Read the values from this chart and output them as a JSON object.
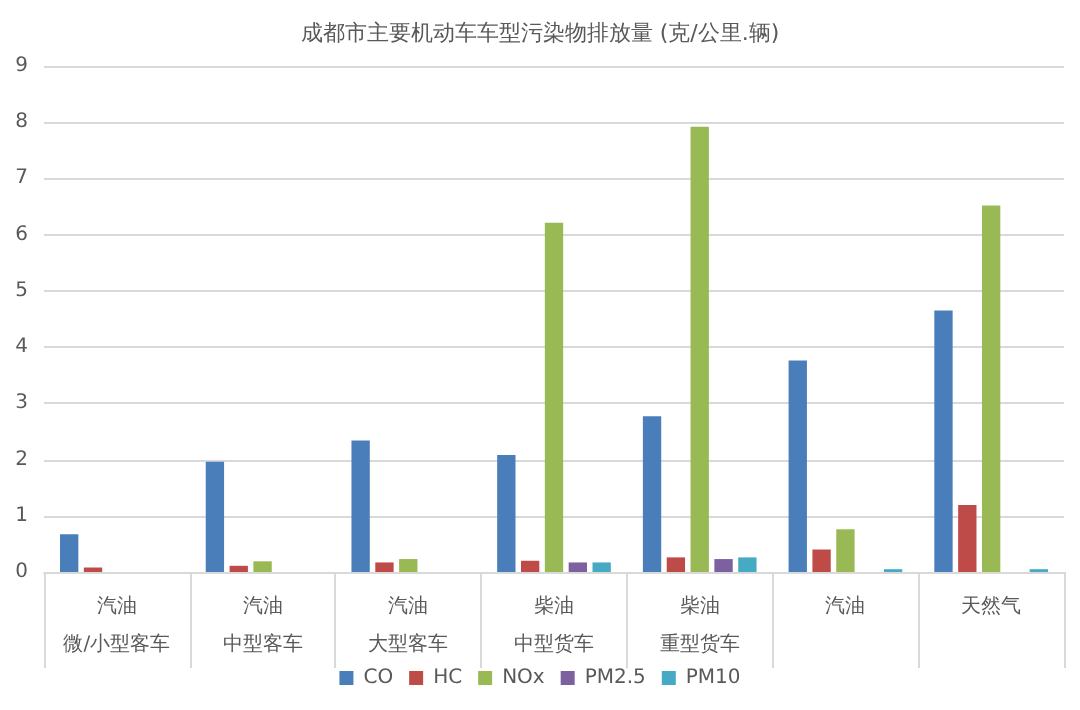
{
  "chart_data": {
    "type": "bar",
    "title": "成都市主要机动车车型污染物排放量 (克/公里.辆)",
    "categories": [
      "汽油微/小型客车",
      "汽油中型客车",
      "汽油大型客车",
      "柴油中型货车",
      "柴油重型货车",
      "汽油",
      "天然气"
    ],
    "series": [
      {
        "name": "CO",
        "color": "#4a7ebb",
        "values": [
          0.67,
          1.96,
          2.34,
          2.08,
          2.77,
          3.76,
          4.65
        ]
      },
      {
        "name": "HC",
        "color": "#be4b48",
        "values": [
          0.08,
          0.11,
          0.17,
          0.2,
          0.26,
          0.4,
          1.19
        ]
      },
      {
        "name": "NOx",
        "color": "#98b954",
        "values": [
          null,
          0.19,
          0.23,
          6.21,
          7.92,
          0.76,
          6.52
        ]
      },
      {
        "name": "PM2.5",
        "color": "#7d60a0",
        "values": [
          null,
          null,
          null,
          0.17,
          0.23,
          null,
          null
        ]
      },
      {
        "name": "PM10",
        "color": "#46aac5",
        "values": [
          null,
          null,
          null,
          0.17,
          0.26,
          0.05,
          0.05
        ]
      }
    ],
    "ylim": [
      0,
      9
    ],
    "yticks": [
      0,
      1,
      2,
      3,
      4,
      5,
      6,
      7,
      8,
      9
    ],
    "grid": "y",
    "legend": "bottom"
  }
}
